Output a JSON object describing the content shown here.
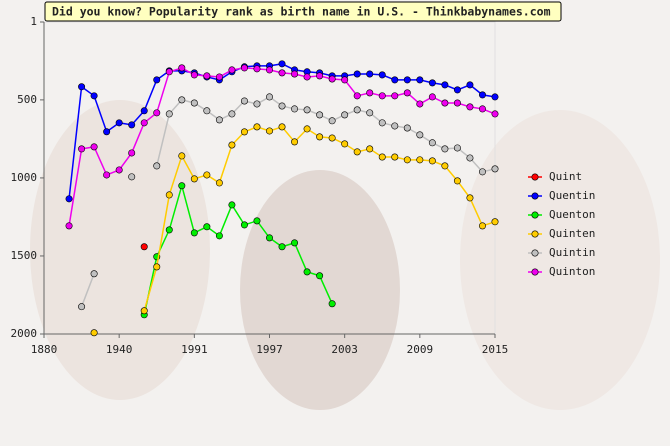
{
  "chart_data": {
    "type": "line",
    "title": "Did you know? Popularity rank as birth name in U.S. - Thinkbabynames.com",
    "categories": [
      "1880",
      null,
      null,
      null,
      null,
      null,
      "1940",
      null,
      null,
      null,
      null,
      null,
      "1991",
      null,
      null,
      null,
      null,
      null,
      "1997",
      null,
      null,
      null,
      null,
      null,
      "2003",
      null,
      null,
      null,
      null,
      null,
      "2009",
      null,
      null,
      null,
      null,
      null,
      "2015"
    ],
    "ylim": [
      1,
      2000
    ],
    "yticks": [
      1,
      500,
      1000,
      1500,
      2000
    ],
    "y_inverted": true,
    "series": [
      {
        "name": "Quint",
        "color": "#ff0000",
        "values": [
          null,
          null,
          null,
          null,
          null,
          null,
          null,
          null,
          1441,
          null,
          null,
          null,
          null,
          null,
          null,
          null,
          null,
          null,
          null,
          null,
          null,
          null,
          null,
          null,
          null,
          null,
          null,
          null,
          null,
          null,
          null,
          null,
          null,
          null,
          null,
          null,
          null
        ]
      },
      {
        "name": "Quentin",
        "color": "#0000ff",
        "values": [
          null,
          null,
          1134,
          416,
          474,
          704,
          647,
          660,
          570,
          372,
          314,
          314,
          327,
          353,
          372,
          320,
          288,
          282,
          282,
          269,
          308,
          320,
          327,
          346,
          346,
          334,
          334,
          340,
          372,
          372,
          372,
          391,
          404,
          436,
          404,
          468,
          481
        ]
      },
      {
        "name": "Quenton",
        "color": "#00ee00",
        "values": [
          null,
          null,
          null,
          null,
          null,
          null,
          null,
          null,
          1877,
          1505,
          1333,
          1050,
          1352,
          1313,
          1371,
          1173,
          1301,
          1275,
          1384,
          1441,
          1416,
          1602,
          1627,
          1806,
          null,
          null,
          null,
          null,
          null,
          null,
          null,
          null,
          null,
          null,
          null,
          null,
          null
        ]
      },
      {
        "name": "Quinten",
        "color": "#ffcc00",
        "values": [
          null,
          null,
          null,
          null,
          1992,
          null,
          null,
          null,
          1851,
          1570,
          1109,
          859,
          1006,
          981,
          1032,
          789,
          705,
          673,
          699,
          673,
          769,
          686,
          737,
          744,
          782,
          833,
          814,
          866,
          866,
          884,
          884,
          891,
          923,
          1019,
          1128,
          1307,
          1281
        ]
      },
      {
        "name": "Quintin",
        "color": "#c0c0c0",
        "values": [
          null,
          null,
          null,
          1825,
          1614,
          null,
          null,
          993,
          null,
          923,
          590,
          500,
          520,
          570,
          628,
          590,
          507,
          526,
          481,
          539,
          558,
          564,
          596,
          634,
          596,
          564,
          583,
          647,
          667,
          680,
          724,
          775,
          814,
          808,
          872,
          961,
          942
        ]
      },
      {
        "name": "Quinton",
        "color": "#ee00ee",
        "values": [
          null,
          null,
          1307,
          814,
          801,
          981,
          949,
          840,
          647,
          583,
          320,
          295,
          340,
          346,
          353,
          308,
          295,
          301,
          308,
          327,
          334,
          353,
          346,
          366,
          372,
          474,
          455,
          474,
          474,
          455,
          526,
          481,
          520,
          520,
          545,
          558,
          590
        ]
      }
    ]
  }
}
